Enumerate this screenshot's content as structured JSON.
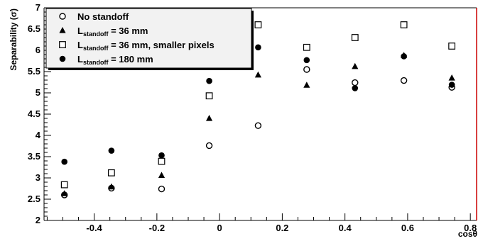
{
  "chart_data": {
    "type": "scatter",
    "xlabel": "cosθ",
    "ylabel": "Separability (σ)",
    "xlim": [
      -0.56,
      0.82
    ],
    "ylim": [
      2,
      7
    ],
    "x_ticks": [
      "-0.4",
      "-0.2",
      "0",
      "0.2",
      "0.4",
      "0.6",
      "0.8"
    ],
    "x_tick_values": [
      -0.4,
      -0.2,
      0,
      0.2,
      0.4,
      0.6,
      0.8
    ],
    "y_ticks": [
      "2",
      "2.5",
      "3",
      "3.5",
      "4",
      "4.5",
      "5",
      "5.5",
      "6",
      "6.5",
      "7"
    ],
    "y_tick_values": [
      2,
      2.5,
      3,
      3.5,
      4,
      4.5,
      5,
      5.5,
      6,
      6.5,
      7
    ],
    "legend_position": "top-left",
    "grid": false,
    "colors": {
      "frame_right": "#cc0000",
      "frame": "#000000",
      "markers": "#000000"
    },
    "series": [
      {
        "name": "No standoff",
        "marker": "open-circle",
        "legend": {
          "prefix": "No standoff",
          "sub": "",
          "suffix": ""
        },
        "x": [
          -0.495,
          -0.345,
          -0.185,
          -0.033,
          0.123,
          0.278,
          0.432,
          0.588,
          0.741
        ],
        "y": [
          2.6,
          2.76,
          2.74,
          3.76,
          4.23,
          5.55,
          5.24,
          5.29,
          5.13
        ]
      },
      {
        "name": "L_standoff = 36 mm",
        "marker": "filled-triangle",
        "legend": {
          "prefix": "L",
          "sub": "standoff",
          "suffix": " = 36 mm"
        },
        "x": [
          -0.495,
          -0.345,
          -0.185,
          -0.033,
          0.123,
          0.278,
          0.432,
          0.588,
          0.741
        ],
        "y": [
          2.63,
          2.79,
          3.06,
          4.4,
          5.42,
          5.18,
          5.62,
          5.88,
          5.35
        ]
      },
      {
        "name": "L_standoff = 36 mm, smaller pixels",
        "marker": "open-square",
        "legend": {
          "prefix": "L",
          "sub": "standoff",
          "suffix": " = 36 mm, smaller pixels"
        },
        "x": [
          -0.495,
          -0.345,
          -0.185,
          -0.033,
          0.123,
          0.278,
          0.432,
          0.588,
          0.741
        ],
        "y": [
          2.84,
          3.12,
          3.39,
          4.93,
          6.6,
          6.07,
          6.3,
          6.6,
          6.1
        ]
      },
      {
        "name": "L_standoff = 180 mm",
        "marker": "filled-circle",
        "legend": {
          "prefix": "L",
          "sub": "standoff",
          "suffix": " = 180 mm"
        },
        "x": [
          -0.495,
          -0.345,
          -0.185,
          -0.033,
          0.123,
          0.278,
          0.432,
          0.588,
          0.741
        ],
        "y": [
          3.38,
          3.64,
          3.53,
          5.28,
          6.07,
          5.77,
          5.11,
          5.86,
          5.19
        ]
      }
    ]
  }
}
